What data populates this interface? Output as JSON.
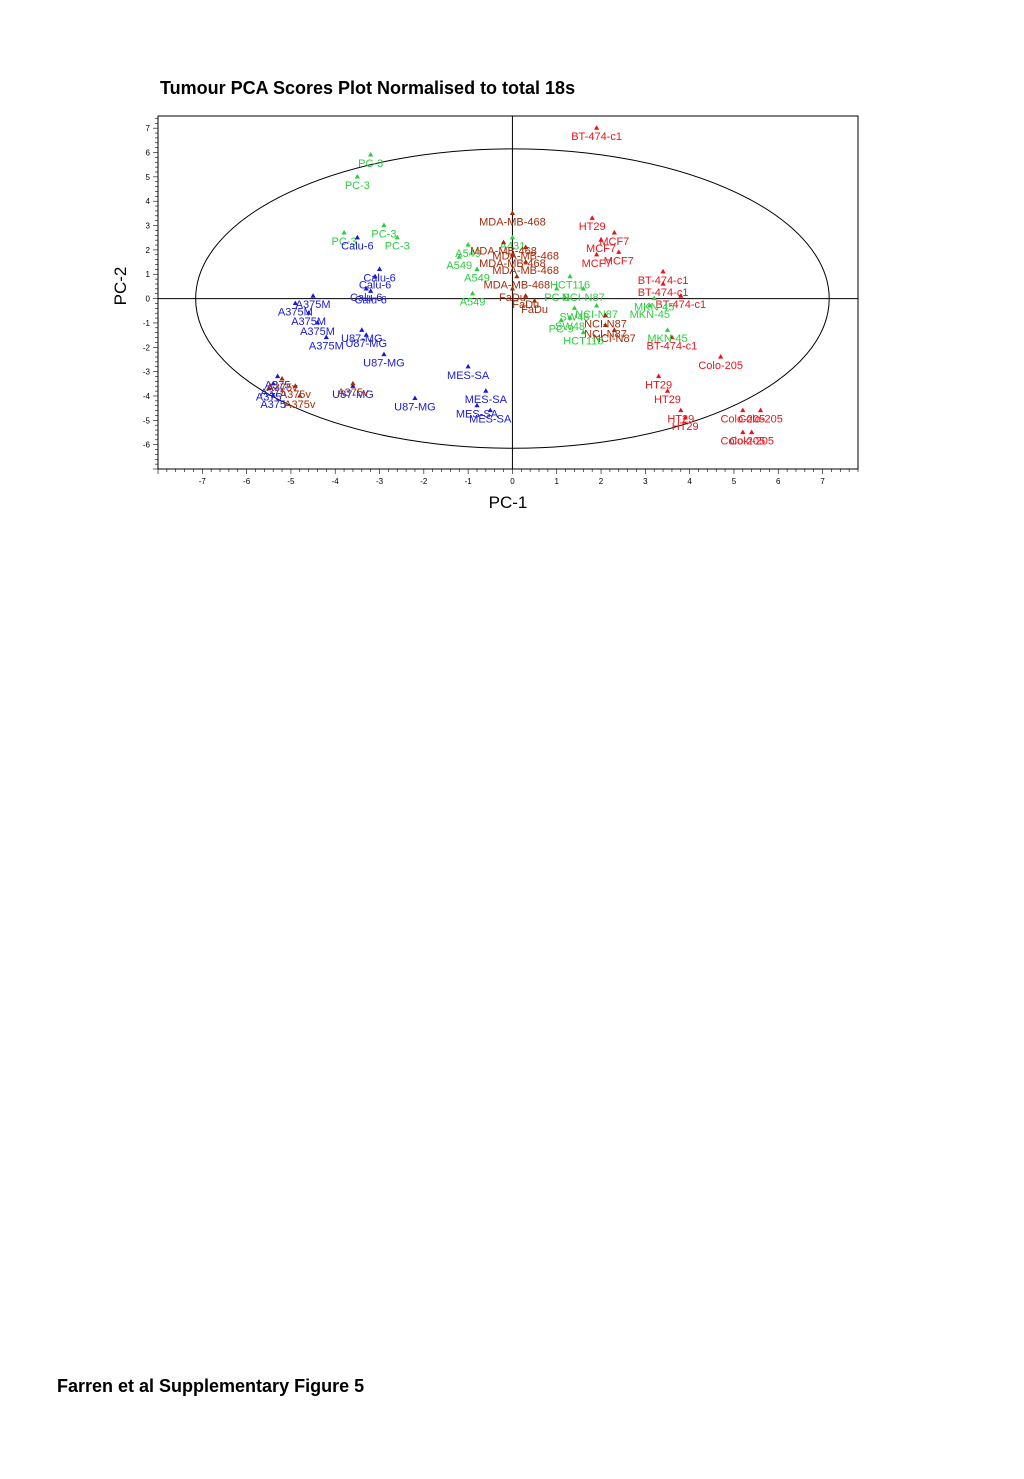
{
  "page": {
    "footer_caption": "Farren et al Supplementary Figure 5"
  },
  "chart_data": {
    "type": "scatter",
    "title": "Tumour PCA Scores Plot Normalised to total 18s",
    "xlabel": "PC-1",
    "ylabel": "PC-2",
    "xlim": [
      -8,
      7.8
    ],
    "ylim": [
      -7,
      7.5
    ],
    "xticks": [
      -7,
      -6,
      -5,
      -4,
      -3,
      -2,
      -1,
      0,
      1,
      2,
      3,
      4,
      5,
      6,
      7
    ],
    "yticks": [
      -6,
      -5,
      -4,
      -3,
      -2,
      -1,
      0,
      1,
      2,
      3,
      4,
      5,
      6,
      7
    ],
    "marker": "triangle",
    "ellipse": {
      "cx": 0,
      "cy": 0,
      "rx": 7.15,
      "ry": 6.15
    },
    "colors": {
      "green": "#2ecc40",
      "red": "#e8141c",
      "blue": "#1a1ad6",
      "brown": "#a52a0a"
    },
    "points": [
      {
        "label": "BT-474-c1",
        "x": 1.9,
        "y": 7.0,
        "c": "red"
      },
      {
        "label": "PC-3",
        "x": -3.2,
        "y": 5.9,
        "c": "green"
      },
      {
        "label": "PC-3",
        "x": -3.5,
        "y": 5.0,
        "c": "green"
      },
      {
        "label": "MDA-MB-468",
        "x": 0.0,
        "y": 3.5,
        "c": "brown"
      },
      {
        "label": "HT29",
        "x": 1.8,
        "y": 3.3,
        "c": "red"
      },
      {
        "label": "PC-3",
        "x": -2.9,
        "y": 3.0,
        "c": "green"
      },
      {
        "label": "PC-3",
        "x": -2.6,
        "y": 2.5,
        "c": "green"
      },
      {
        "label": "PC-3",
        "x": -3.8,
        "y": 2.7,
        "c": "green"
      },
      {
        "label": "Calu-6",
        "x": -3.5,
        "y": 2.5,
        "c": "blue"
      },
      {
        "label": "MCF7",
        "x": 2.0,
        "y": 2.4,
        "c": "red"
      },
      {
        "label": "MCF7",
        "x": 2.3,
        "y": 2.7,
        "c": "red"
      },
      {
        "label": "MCF7",
        "x": 1.9,
        "y": 1.8,
        "c": "red"
      },
      {
        "label": "MCF7",
        "x": 2.4,
        "y": 1.9,
        "c": "red"
      },
      {
        "label": "A549",
        "x": -1.0,
        "y": 2.2,
        "c": "green"
      },
      {
        "label": "A549",
        "x": -1.2,
        "y": 1.7,
        "c": "green"
      },
      {
        "label": "A549",
        "x": -0.8,
        "y": 1.2,
        "c": "green"
      },
      {
        "label": "A549",
        "x": -0.9,
        "y": 0.2,
        "c": "green"
      },
      {
        "label": "A431",
        "x": 0.0,
        "y": 2.5,
        "c": "green"
      },
      {
        "label": "MDA-MB-468",
        "x": -0.2,
        "y": 2.3,
        "c": "brown"
      },
      {
        "label": "MDA-MB-468",
        "x": 0.3,
        "y": 2.1,
        "c": "brown"
      },
      {
        "label": "MDA-MB-468",
        "x": 0.0,
        "y": 1.8,
        "c": "brown"
      },
      {
        "label": "MDA-MB-468",
        "x": 0.3,
        "y": 1.5,
        "c": "brown"
      },
      {
        "label": "MDA-MB-468",
        "x": 0.1,
        "y": 0.9,
        "c": "brown"
      },
      {
        "label": "FaDu",
        "x": 0.0,
        "y": 0.4,
        "c": "brown"
      },
      {
        "label": "FaDu",
        "x": 0.3,
        "y": 0.1,
        "c": "brown"
      },
      {
        "label": "FaDu",
        "x": 0.5,
        "y": -0.1,
        "c": "brown"
      },
      {
        "label": "Calu-6",
        "x": -3.0,
        "y": 1.2,
        "c": "blue"
      },
      {
        "label": "Calu-6",
        "x": -3.1,
        "y": 0.9,
        "c": "blue"
      },
      {
        "label": "Calu-6",
        "x": -3.3,
        "y": 0.4,
        "c": "blue"
      },
      {
        "label": "Calu-6",
        "x": -3.2,
        "y": 0.3,
        "c": "blue"
      },
      {
        "label": "BT-474-c1",
        "x": 3.4,
        "y": 1.1,
        "c": "red"
      },
      {
        "label": "BT-474-c1",
        "x": 3.4,
        "y": 0.6,
        "c": "red"
      },
      {
        "label": "BT-474-c1",
        "x": 3.8,
        "y": 0.1,
        "c": "red"
      },
      {
        "label": "BT-474-c1",
        "x": 3.6,
        "y": -1.6,
        "c": "red"
      },
      {
        "label": "NCI-N87",
        "x": 1.6,
        "y": 0.4,
        "c": "green"
      },
      {
        "label": "NCI-N87",
        "x": 1.9,
        "y": -0.3,
        "c": "green"
      },
      {
        "label": "NCI-N87",
        "x": 2.1,
        "y": -0.7,
        "c": "brown"
      },
      {
        "label": "NCI-N87",
        "x": 2.1,
        "y": -1.1,
        "c": "brown"
      },
      {
        "label": "NCI-N87",
        "x": 2.3,
        "y": -1.3,
        "c": "brown"
      },
      {
        "label": "SW48",
        "x": 1.4,
        "y": -0.4,
        "c": "green"
      },
      {
        "label": "SW48",
        "x": 1.3,
        "y": -0.8,
        "c": "green"
      },
      {
        "label": "HCT116",
        "x": 1.3,
        "y": 0.9,
        "c": "green"
      },
      {
        "label": "HCT116",
        "x": 1.6,
        "y": -1.4,
        "c": "green"
      },
      {
        "label": "PC-9",
        "x": 1.0,
        "y": 0.4,
        "c": "green"
      },
      {
        "label": "PC-9",
        "x": 1.1,
        "y": -0.9,
        "c": "green"
      },
      {
        "label": "MKN-45",
        "x": 3.2,
        "y": 0.0,
        "c": "green"
      },
      {
        "label": "MKN-45",
        "x": 3.1,
        "y": -0.3,
        "c": "green"
      },
      {
        "label": "MKN-45",
        "x": 3.5,
        "y": -1.3,
        "c": "green"
      },
      {
        "label": "A375M",
        "x": -4.5,
        "y": 0.1,
        "c": "blue"
      },
      {
        "label": "A375M",
        "x": -4.9,
        "y": -0.2,
        "c": "blue"
      },
      {
        "label": "A375M",
        "x": -4.6,
        "y": -0.6,
        "c": "blue"
      },
      {
        "label": "A375M",
        "x": -4.4,
        "y": -1.0,
        "c": "blue"
      },
      {
        "label": "A375M",
        "x": -4.2,
        "y": -1.6,
        "c": "blue"
      },
      {
        "label": "U87-MG",
        "x": -3.4,
        "y": -1.3,
        "c": "blue"
      },
      {
        "label": "U87-MG",
        "x": -3.3,
        "y": -1.5,
        "c": "blue"
      },
      {
        "label": "U87-MG",
        "x": -2.9,
        "y": -2.3,
        "c": "blue"
      },
      {
        "label": "U87-MG",
        "x": -3.6,
        "y": -3.6,
        "c": "blue"
      },
      {
        "label": "U87-MG",
        "x": -2.2,
        "y": -4.1,
        "c": "blue"
      },
      {
        "label": "MES-SA",
        "x": -1.0,
        "y": -2.8,
        "c": "blue"
      },
      {
        "label": "MES-SA",
        "x": -0.6,
        "y": -3.8,
        "c": "blue"
      },
      {
        "label": "MES-SA",
        "x": -0.8,
        "y": -4.4,
        "c": "blue"
      },
      {
        "label": "MES-SA",
        "x": -0.5,
        "y": -4.6,
        "c": "blue"
      },
      {
        "label": "A375",
        "x": -5.3,
        "y": -3.2,
        "c": "blue"
      },
      {
        "label": "A375",
        "x": -5.4,
        "y": -3.5,
        "c": "blue"
      },
      {
        "label": "A375",
        "x": -5.5,
        "y": -3.7,
        "c": "blue"
      },
      {
        "label": "A375",
        "x": -5.4,
        "y": -4.0,
        "c": "blue"
      },
      {
        "label": "A375v",
        "x": -5.2,
        "y": -3.3,
        "c": "brown"
      },
      {
        "label": "A375v",
        "x": -4.9,
        "y": -3.6,
        "c": "brown"
      },
      {
        "label": "A375v",
        "x": -4.8,
        "y": -4.0,
        "c": "brown"
      },
      {
        "label": "A375v",
        "x": -3.6,
        "y": -3.5,
        "c": "brown"
      },
      {
        "label": "Colo-205",
        "x": 4.7,
        "y": -2.4,
        "c": "red"
      },
      {
        "label": "Colo-205",
        "x": 5.2,
        "y": -4.6,
        "c": "red"
      },
      {
        "label": "Colo-205",
        "x": 5.6,
        "y": -4.6,
        "c": "red"
      },
      {
        "label": "Colo-205",
        "x": 5.2,
        "y": -5.5,
        "c": "red"
      },
      {
        "label": "Colo-205",
        "x": 5.4,
        "y": -5.5,
        "c": "red"
      },
      {
        "label": "HT29",
        "x": 3.3,
        "y": -3.2,
        "c": "red"
      },
      {
        "label": "HT29",
        "x": 3.5,
        "y": -3.8,
        "c": "red"
      },
      {
        "label": "HT29",
        "x": 3.8,
        "y": -4.6,
        "c": "red"
      },
      {
        "label": "HT29",
        "x": 3.9,
        "y": -4.9,
        "c": "red"
      }
    ]
  }
}
